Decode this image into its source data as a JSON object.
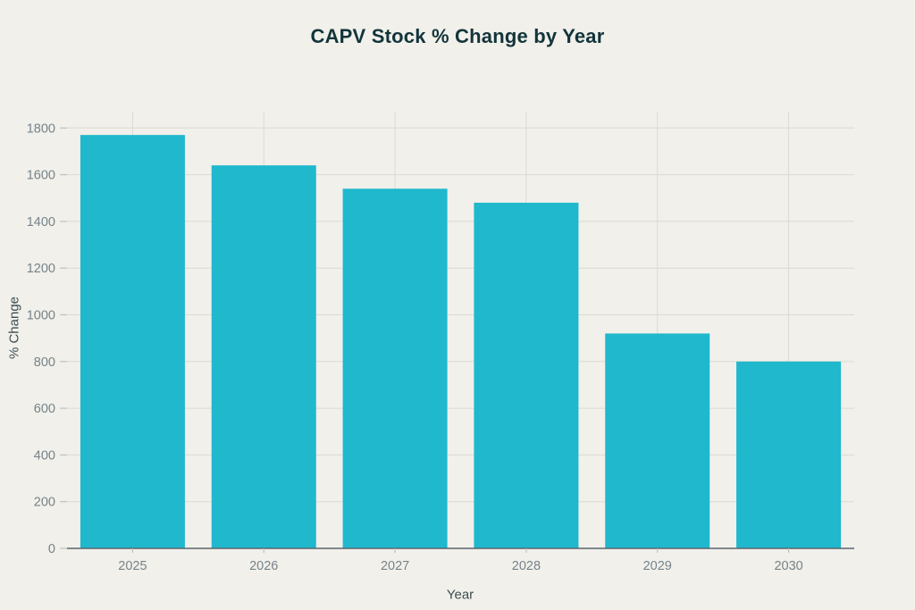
{
  "page": {
    "background_color": "#F1F0EA"
  },
  "chart_data": {
    "type": "bar",
    "title": "CAPV Stock % Change by Year",
    "xlabel": "Year",
    "ylabel": "% Change",
    "categories": [
      "2025",
      "2026",
      "2027",
      "2028",
      "2029",
      "2030"
    ],
    "values": [
      1770,
      1640,
      1540,
      1480,
      920,
      800
    ],
    "ylim": [
      0,
      1800
    ],
    "yticks": [
      0,
      200,
      400,
      600,
      800,
      1000,
      1200,
      1400,
      1600,
      1800
    ],
    "grid": true,
    "legend": "none",
    "colors": {
      "bar": "#1FB8CD",
      "title": "#13343B",
      "axis_label": "#3C4E54",
      "tick_label": "#76838A",
      "gridline": "#DBDAD2",
      "tick_mark": "#C2C1B9",
      "axis_line": "#5A666D"
    }
  }
}
